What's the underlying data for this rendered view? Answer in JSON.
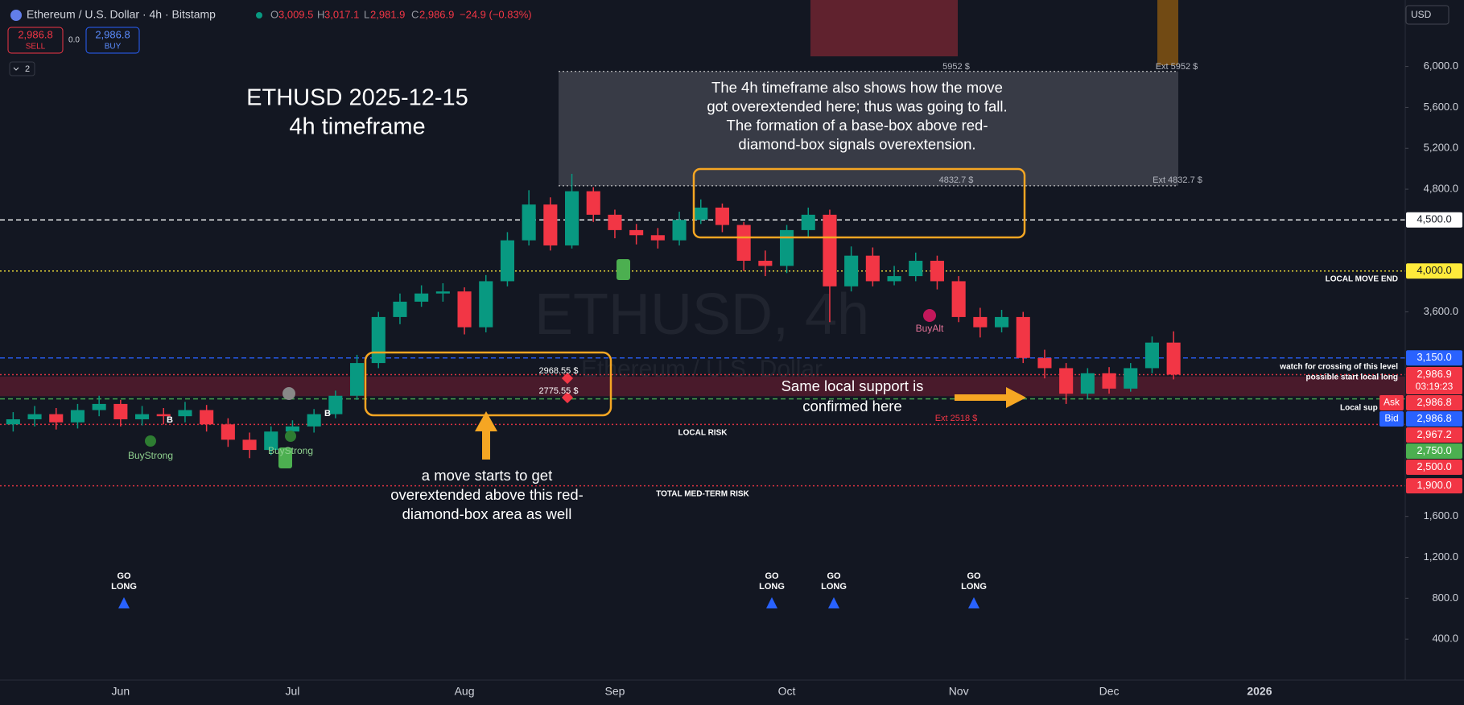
{
  "header": {
    "symbol": "Ethereum / U.S. Dollar · 4h · Bitstamp",
    "ohlc": [
      {
        "key": "O",
        "value": "3,009.5"
      },
      {
        "key": "H",
        "value": "3,017.1"
      },
      {
        "key": "L",
        "value": "2,981.9"
      },
      {
        "key": "C",
        "value": "2,986.9"
      }
    ],
    "change": "−24.9 (−0.83%)",
    "sell_price": "2,986.8",
    "sell": "SELL",
    "spread": "0.0",
    "buy_price": "2,986.8",
    "buy": "BUY",
    "layers": "2",
    "currency": "USD"
  },
  "chart_data": {
    "type": "candlestick",
    "title": "ETHUSD 2025-12-15",
    "subtitle": "4h timeframe",
    "watermark": [
      "ETHUSD, 4h",
      "Ethereum / U.S. Dollar"
    ],
    "categories": [
      null,
      null,
      null,
      null,
      null,
      "Jun",
      null,
      null,
      null,
      null,
      null,
      null,
      null,
      "Jul",
      null,
      null,
      null,
      null,
      null,
      null,
      null,
      "Aug",
      null,
      null,
      null,
      null,
      null,
      null,
      "Sep",
      null,
      null,
      null,
      null,
      null,
      null,
      null,
      "Oct",
      null,
      null,
      null,
      null,
      null,
      null,
      null,
      "Nov",
      null,
      null,
      null,
      null,
      null,
      null,
      "Dec",
      null,
      null,
      null,
      null,
      null,
      null,
      "2026",
      null
    ],
    "open": [
      2500,
      2550,
      2600,
      2520,
      2640,
      2700,
      2550,
      2600,
      2580,
      2640,
      2500,
      2350,
      2250,
      2430,
      2480,
      2600,
      2780,
      3100,
      3550,
      3700,
      3780,
      3800,
      3450,
      3900,
      4300,
      4650,
      4250,
      4780,
      4550,
      4400,
      4350,
      4300,
      4500,
      4620,
      4450,
      4100,
      4050,
      4400,
      4550,
      3850,
      4150,
      3900,
      3950,
      4100,
      3900,
      3550,
      3450,
      3550,
      3150,
      3050,
      2800,
      3000,
      2850,
      3050,
      3300,
      null,
      null,
      null,
      null,
      null
    ],
    "high": [
      2620,
      2680,
      2660,
      2700,
      2780,
      2740,
      2680,
      2660,
      2720,
      2690,
      2560,
      2420,
      2480,
      2540,
      2650,
      2830,
      3180,
      3600,
      3780,
      3860,
      3880,
      3840,
      3960,
      4380,
      4790,
      4720,
      4950,
      4820,
      4600,
      4460,
      4420,
      4580,
      4700,
      4660,
      4480,
      4200,
      4450,
      4620,
      4600,
      4240,
      4230,
      4050,
      4180,
      4150,
      3950,
      3640,
      3620,
      3600,
      3230,
      3100,
      3050,
      3060,
      3100,
      3360,
      3410,
      null,
      null,
      null,
      null,
      null
    ],
    "low": [
      2430,
      2480,
      2450,
      2460,
      2580,
      2480,
      2490,
      2500,
      2520,
      2430,
      2280,
      2170,
      2200,
      2380,
      2420,
      2560,
      2740,
      3050,
      3480,
      3650,
      3700,
      3380,
      3400,
      3850,
      4250,
      4200,
      4220,
      4480,
      4320,
      4260,
      4220,
      4250,
      4460,
      4380,
      4000,
      3950,
      3980,
      4330,
      3500,
      3800,
      3850,
      3860,
      3900,
      3820,
      3500,
      3350,
      3400,
      3100,
      2950,
      2700,
      2750,
      2800,
      2820,
      3000,
      2940,
      null,
      null,
      null,
      null,
      null
    ],
    "close": [
      2550,
      2600,
      2520,
      2640,
      2700,
      2550,
      2600,
      2580,
      2640,
      2500,
      2350,
      2250,
      2430,
      2480,
      2600,
      2780,
      3100,
      3550,
      3700,
      3780,
      3800,
      3450,
      3900,
      4300,
      4650,
      4250,
      4780,
      4550,
      4400,
      4350,
      4300,
      4500,
      4620,
      4450,
      4100,
      4050,
      4400,
      4550,
      3850,
      4150,
      3900,
      3950,
      4100,
      3900,
      3550,
      3450,
      3550,
      3150,
      3050,
      2800,
      3000,
      2850,
      3050,
      3300,
      2987,
      null,
      null,
      null,
      null,
      null
    ],
    "up_color": "#089981",
    "down_color": "#f23645",
    "ylim": [
      0,
      6650
    ],
    "yticks": [
      {
        "value": 400,
        "label": "400.0"
      },
      {
        "value": 800,
        "label": "800.0"
      },
      {
        "value": 1200,
        "label": "1,200.0"
      },
      {
        "value": 1600,
        "label": "1,600.0"
      },
      {
        "value": 3600,
        "label": "3,600.0"
      },
      {
        "value": 4800,
        "label": "4,800.0"
      },
      {
        "value": 5200,
        "label": "5,200.0"
      },
      {
        "value": 5600,
        "label": "5,600.0"
      },
      {
        "value": 6000,
        "label": "6,000.0"
      }
    ],
    "grid": false,
    "zones": [
      {
        "top": 5952,
        "bottom": 4832.7,
        "color": "rgba(190,192,200,0.22)"
      },
      {
        "top": 2968.55,
        "bottom": 2775.55,
        "color": "rgba(140,30,55,0.45)"
      }
    ],
    "price_tags": [
      {
        "value": 4500,
        "label": "4,500.0",
        "color": "#ffffff",
        "text_color": "#131722",
        "line": "dashed"
      },
      {
        "value": 4000,
        "label": "4,000.0",
        "color": "#ffeb3b",
        "text_color": "#131722",
        "line": "dotted"
      },
      {
        "value": 3150,
        "label": "3,150.0",
        "color": "#2962ff",
        "text_color": "#ffffff",
        "line": "dashed"
      },
      {
        "value": 2986.9,
        "label": "2,986.9",
        "timer": "03:19:23",
        "color": "#f23645",
        "text_color": "#ffffff",
        "line": "dotted"
      },
      {
        "value": 2986.8,
        "label": "2,986.8",
        "tag": "Ask",
        "color": "#f23645",
        "text_color": "#ffffff"
      },
      {
        "value": 2986.8,
        "label": "2,986.8",
        "tag": "Bid",
        "color": "#2962ff",
        "text_color": "#ffffff"
      },
      {
        "value": 2967.2,
        "label": "2,967.2",
        "color": "#f23645",
        "text_color": "#ffffff"
      },
      {
        "value": 2750,
        "label": "2,750.0",
        "color": "#4caf50",
        "text_color": "#ffffff",
        "line": "dashed"
      },
      {
        "value": 2500,
        "label": "2,500.0",
        "color": "#f23645",
        "text_color": "#ffffff",
        "line": "dotted"
      },
      {
        "value": 1900,
        "label": "1,900.0",
        "color": "#f23645",
        "text_color": "#ffffff",
        "line": "dotted"
      }
    ],
    "notes": [
      [
        "The 4h timeframe also shows how the move",
        "got overextended here; thus was going to fall.",
        "The formation of a base-box above red-",
        "diamond-box signals overextension."
      ],
      [
        "a move starts to get",
        "overextended above this red-",
        "diamond-box area as well"
      ],
      [
        "Same local support is",
        "confirmed here"
      ]
    ],
    "labels": [
      "LOCAL MOVE END",
      "watch for crossing of this level",
      "possible start local long",
      "Local sup",
      "LOCAL RISK",
      "TOTAL MED-TERM RISK",
      "Ext 2518 $",
      "5952 $",
      "Ext 5952 $",
      "4832.7 $",
      "Ext 4832.7 $",
      "2968.55 $",
      "2775.55 $",
      "BuyStrong",
      "BuyStrong",
      "BuyAlt",
      "B",
      "B"
    ],
    "signals": [
      [
        "GO",
        "LONG"
      ],
      [
        "GO",
        "LONG"
      ],
      [
        "GO",
        "LONG"
      ],
      [
        "GO",
        "LONG"
      ]
    ]
  }
}
